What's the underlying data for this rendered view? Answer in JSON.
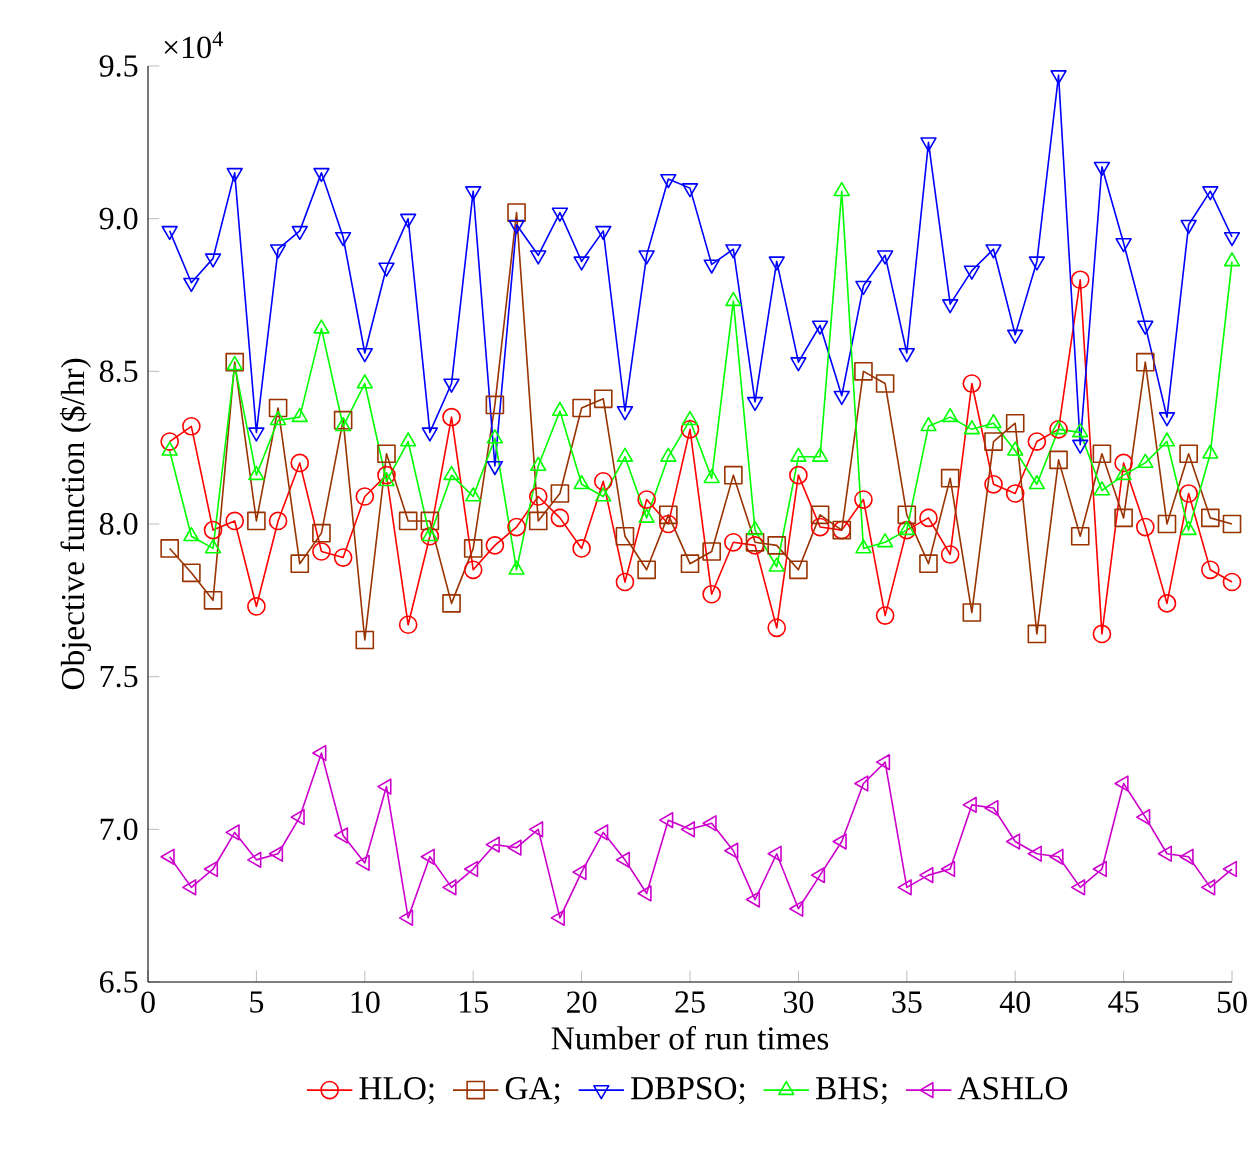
{
  "chart_data": {
    "type": "line",
    "xlabel": "Number of run times",
    "ylabel": "Objective function ($/hr)",
    "annotations": [
      "×10$^{4}$"
    ],
    "x": [
      1,
      2,
      3,
      4,
      5,
      6,
      7,
      8,
      9,
      10,
      11,
      12,
      13,
      14,
      15,
      16,
      17,
      18,
      19,
      20,
      21,
      22,
      23,
      24,
      25,
      26,
      27,
      28,
      29,
      30,
      31,
      32,
      33,
      34,
      35,
      36,
      37,
      38,
      39,
      40,
      41,
      42,
      43,
      44,
      45,
      46,
      47,
      48,
      49,
      50
    ],
    "xlim": [
      0,
      50
    ],
    "xticks": [
      0,
      5,
      10,
      15,
      20,
      25,
      30,
      35,
      40,
      45,
      50
    ],
    "ylim": [
      6.5,
      9.5
    ],
    "yticks": [
      6.5,
      {
        "value": 7,
        "label": "7.0"
      },
      7.5,
      {
        "value": 8,
        "label": "8.0"
      },
      8.5,
      {
        "value": 9,
        "label": "9.0"
      },
      9.5
    ],
    "grid": false,
    "legend": "bottom",
    "line_style": "solid",
    "series": [
      {
        "name": "HLO;",
        "color": "#ff0000",
        "marker": "circle",
        "values": [
          8.27,
          8.32,
          7.98,
          8.01,
          7.73,
          8.01,
          8.2,
          7.91,
          7.89,
          8.09,
          8.16,
          7.67,
          7.96,
          8.35,
          7.85,
          7.93,
          7.99,
          8.09,
          8.02,
          7.92,
          8.14,
          7.81,
          8.08,
          8.0,
          8.31,
          7.77,
          7.94,
          7.93,
          7.66,
          8.16,
          7.99,
          7.98,
          8.08,
          7.7,
          7.98,
          8.02,
          7.9,
          8.46,
          8.13,
          8.1,
          8.27,
          8.31,
          8.8,
          7.64,
          8.2,
          7.99,
          7.74,
          8.1,
          7.85,
          7.81
        ]
      },
      {
        "name": "GA;",
        "color": "#993300",
        "marker": "square",
        "values": [
          7.92,
          7.84,
          7.75,
          8.53,
          8.01,
          8.38,
          7.87,
          7.97,
          8.34,
          7.62,
          8.23,
          8.01,
          8.01,
          7.74,
          7.92,
          8.39,
          9.02,
          8.01,
          8.1,
          8.38,
          8.41,
          7.96,
          7.85,
          8.03,
          7.87,
          7.91,
          8.16,
          7.94,
          7.93,
          7.85,
          8.03,
          7.98,
          8.5,
          8.46,
          8.03,
          7.87,
          8.15,
          7.71,
          8.27,
          8.33,
          7.64,
          8.21,
          7.96,
          8.23,
          8.02,
          8.53,
          8.0,
          8.23,
          8.02,
          8.0
        ]
      },
      {
        "name": "DBPSO;",
        "color": "#0000ff",
        "marker": "triangle",
        "values": [
          8.96,
          8.79,
          8.87,
          9.15,
          8.3,
          8.9,
          8.96,
          9.15,
          8.94,
          8.56,
          8.84,
          9.0,
          8.3,
          8.46,
          9.09,
          8.19,
          8.98,
          8.88,
          9.02,
          8.86,
          8.96,
          8.37,
          8.88,
          9.13,
          9.1,
          8.85,
          8.9,
          8.4,
          8.86,
          8.53,
          8.65,
          8.42,
          8.78,
          8.88,
          8.56,
          9.25,
          8.72,
          8.83,
          8.9,
          8.62,
          8.86,
          9.47,
          8.26,
          9.17,
          8.92,
          8.65,
          8.35,
          8.98,
          9.09,
          8.94
        ]
      },
      {
        "name": "BHS;",
        "color": "#00ff00",
        "marker": "triangle",
        "values": [
          8.24,
          7.96,
          7.92,
          8.52,
          8.16,
          8.34,
          8.35,
          8.64,
          8.32,
          8.46,
          8.14,
          8.27,
          7.96,
          8.16,
          8.09,
          8.28,
          7.85,
          8.19,
          8.37,
          8.13,
          8.09,
          8.22,
          8.02,
          8.22,
          8.34,
          8.15,
          8.73,
          7.98,
          7.86,
          8.22,
          8.22,
          9.09,
          7.92,
          7.94,
          7.98,
          8.32,
          8.35,
          8.31,
          8.33,
          8.24,
          8.13,
          8.31,
          8.3,
          8.11,
          8.16,
          8.2,
          8.27,
          7.98,
          8.23,
          8.86
        ]
      },
      {
        "name": "ASHLO",
        "color": "#cc00cc",
        "marker": "triangle",
        "values": [
          6.91,
          6.81,
          6.87,
          6.99,
          6.9,
          6.92,
          7.04,
          7.25,
          6.98,
          6.89,
          7.14,
          6.71,
          6.91,
          6.81,
          6.87,
          6.95,
          6.94,
          7.0,
          6.71,
          6.86,
          6.99,
          6.9,
          6.79,
          7.03,
          7.0,
          7.02,
          6.93,
          6.77,
          6.92,
          6.74,
          6.85,
          6.96,
          7.15,
          7.22,
          6.81,
          6.85,
          6.87,
          7.08,
          7.07,
          6.96,
          6.92,
          6.91,
          6.81,
          6.87,
          7.15,
          7.04,
          6.92,
          6.91,
          6.81,
          6.87
        ]
      }
    ]
  }
}
